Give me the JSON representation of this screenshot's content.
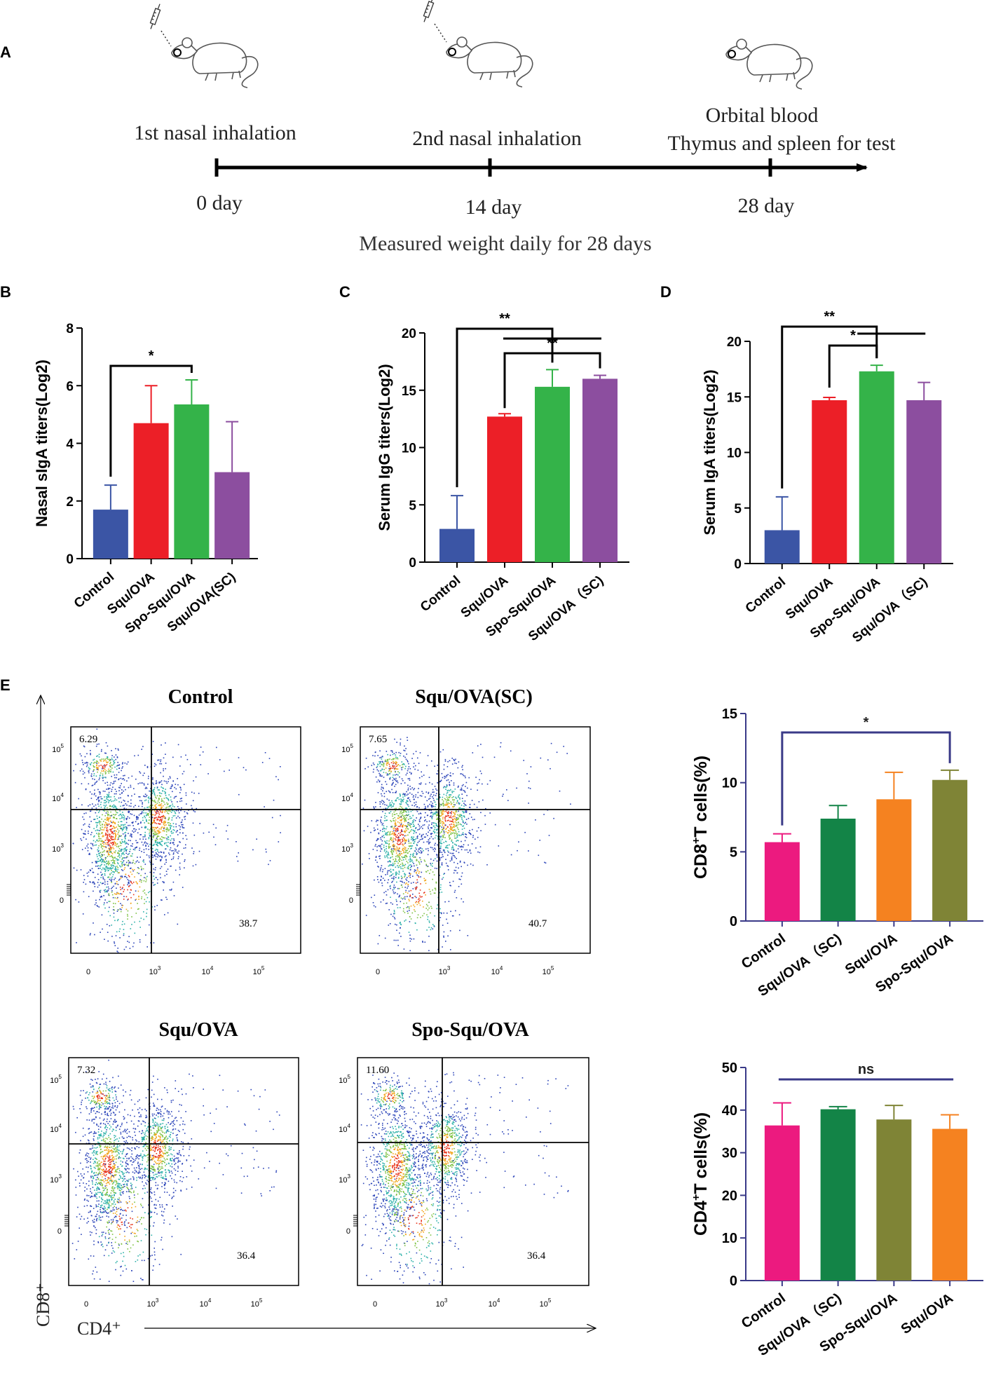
{
  "panel_labels": {
    "a": "A",
    "b": "B",
    "c": "C",
    "d": "D",
    "e": "E"
  },
  "timeline": {
    "events": [
      {
        "label": "1st nasal inhalation",
        "day": "0 day"
      },
      {
        "label": "2nd nasal inhalation",
        "day": "14 day"
      },
      {
        "label": "Orbital blood",
        "label2": "Thymus and spleen for test",
        "day": "28 day"
      }
    ],
    "footer": "Measured weight daily for 28 days"
  },
  "colors": {
    "blue": "#3b55a5",
    "red": "#ec1f27",
    "green": "#34b349",
    "purple": "#8c4e9f",
    "pink": "#ec1a7f",
    "dkgreen": "#138447",
    "orange": "#f58220",
    "olive": "#7f8436",
    "navy": "#3a3a88"
  },
  "chart_data": [
    {
      "id": "B",
      "type": "bar",
      "ylabel": "Nasal sIgA titers(Log2)",
      "ylim": [
        0,
        8
      ],
      "yticks": [
        0,
        2,
        4,
        6,
        8
      ],
      "categories": [
        "Control",
        "Squ/OVA",
        "Spo-Squ/OVA",
        "Squ/OVA(SC)"
      ],
      "values": [
        1.7,
        4.7,
        5.35,
        3.0
      ],
      "errors": [
        0.85,
        1.3,
        0.85,
        1.75
      ],
      "colors": [
        "blue",
        "red",
        "green",
        "purple"
      ],
      "significance": [
        {
          "text": "*",
          "from": 0,
          "to": 2
        }
      ]
    },
    {
      "id": "C",
      "type": "bar",
      "ylabel": "Serum IgG titers(Log2)",
      "ylim": [
        0,
        20
      ],
      "yticks": [
        0,
        5,
        10,
        15,
        20
      ],
      "categories": [
        "Control",
        "Squ/OVA",
        "Spo-Squ/OVA",
        "Squ/OVA（SC)"
      ],
      "values": [
        2.9,
        12.7,
        15.3,
        16.0
      ],
      "errors": [
        2.9,
        0.25,
        1.5,
        0.3
      ],
      "colors": [
        "blue",
        "red",
        "green",
        "purple"
      ],
      "significance": [
        {
          "text": "**",
          "from": 0,
          "to": 2
        },
        {
          "text": "**",
          "from": 1,
          "to": 3
        }
      ]
    },
    {
      "id": "D",
      "type": "bar",
      "ylabel": "Serum IgA titers(Log2)",
      "ylim": [
        0,
        20
      ],
      "yticks": [
        0,
        5,
        10,
        15,
        20
      ],
      "categories": [
        "Control",
        "Squ/OVA",
        "Spo-Squ/OVA",
        "Squ/OVA（SC)"
      ],
      "values": [
        3.0,
        14.7,
        17.3,
        14.7
      ],
      "errors": [
        3.0,
        0.25,
        0.55,
        1.6
      ],
      "colors": [
        "blue",
        "red",
        "green",
        "purple"
      ],
      "significance": [
        {
          "text": "**",
          "from": 0,
          "to": 2
        },
        {
          "text": "*",
          "from": 1,
          "to": 2
        }
      ]
    },
    {
      "id": "E-CD8",
      "type": "bar",
      "ylabel_main": "CD8",
      "ylabel_sup": "+",
      "ylabel_rest": "T cells(%)",
      "ylim": [
        0,
        15
      ],
      "yticks": [
        0,
        5,
        10,
        15
      ],
      "categories": [
        "Control",
        "Squ/OVA（SC)",
        "Squ/OVA",
        "Spo-Squ/OVA"
      ],
      "values": [
        5.7,
        7.4,
        8.8,
        10.2
      ],
      "errors": [
        0.6,
        0.95,
        1.95,
        0.7
      ],
      "colors": [
        "pink",
        "dkgreen",
        "orange",
        "olive"
      ],
      "significance": [
        {
          "text": "*",
          "from": 0,
          "to": 3
        }
      ]
    },
    {
      "id": "E-CD4",
      "type": "bar",
      "ylabel_main": "CD4",
      "ylabel_sup": "+",
      "ylabel_rest": "T cells(%)",
      "ylim": [
        0,
        50
      ],
      "yticks": [
        0,
        10,
        20,
        30,
        40,
        50
      ],
      "categories": [
        "Control",
        "Squ/OVA（SC)",
        "Spo-Squ/OVA",
        "Squ/OVA"
      ],
      "values": [
        36.4,
        40.2,
        37.8,
        35.6
      ],
      "errors": [
        5.3,
        0.6,
        3.3,
        3.3
      ],
      "colors": [
        "pink",
        "dkgreen",
        "olive",
        "orange"
      ],
      "significance": [
        {
          "text": "ns",
          "from": 0,
          "to": 3
        }
      ]
    }
  ],
  "flow": {
    "y_axis": "CD8⁺",
    "x_axis": "CD4⁺",
    "tick_labels": {
      "zero": "0",
      "e3": "10",
      "e4": "10",
      "e5": "10",
      "exp3": "3",
      "exp4": "4",
      "exp5": "5"
    },
    "plots": [
      {
        "title": "Control",
        "ul": "6.29",
        "lr": "38.7"
      },
      {
        "title": "Squ/OVA(SC)",
        "ul": "7.65",
        "lr": "40.7"
      },
      {
        "title": "Squ/OVA",
        "ul": "7.32",
        "lr": "36.4"
      },
      {
        "title": "Spo-Squ/OVA",
        "ul": "11.60",
        "lr": "36.4"
      }
    ]
  }
}
